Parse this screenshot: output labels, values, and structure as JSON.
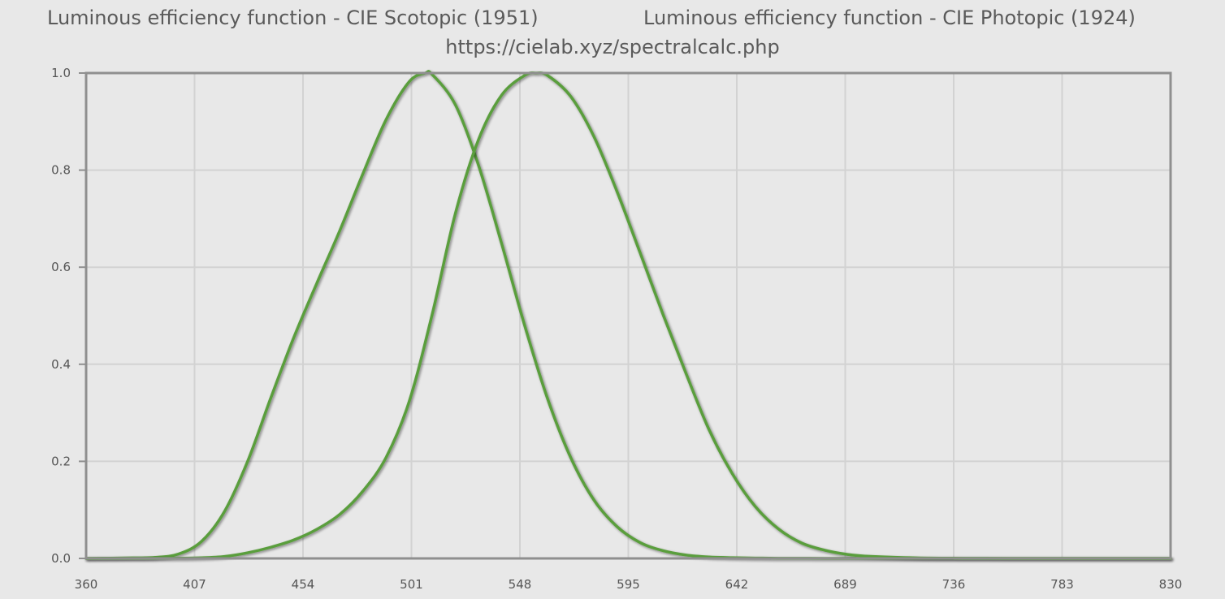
{
  "header": {
    "left_title": "Luminous efficiency function - CIE Scotopic (1951)",
    "right_title": "Luminous efficiency function - CIE Photopic (1924)",
    "subtitle": "https://cielab.xyz/spectralcalc.php"
  },
  "colors": {
    "background": "#e8e8e8",
    "plot_background": "#e8e8e8",
    "grid": "#d2d2d2",
    "frame": "#8f8f8f",
    "line": "#5a9e3c",
    "line_shadow": "#9c9c9c",
    "text": "#5a5a5a"
  },
  "chart_data": {
    "type": "line",
    "title": "",
    "xlabel": "",
    "ylabel": "",
    "xlim": [
      360,
      830
    ],
    "ylim": [
      0,
      1
    ],
    "grid": true,
    "legend": "none",
    "x_ticks": [
      360,
      407,
      454,
      501,
      548,
      595,
      642,
      689,
      736,
      783,
      830
    ],
    "y_ticks": [
      "0.0",
      "0.2",
      "0.4",
      "0.6",
      "0.8",
      "1.0"
    ],
    "series": [
      {
        "x": [
          360,
          380,
          390,
          400,
          410,
          420,
          430,
          440,
          450,
          460,
          470,
          480,
          490,
          500,
          507,
          510,
          520,
          530,
          540,
          550,
          560,
          570,
          580,
          590,
          600,
          610,
          620,
          630,
          640,
          650,
          660,
          680,
          700,
          730,
          780,
          830
        ],
        "y": [
          0.0,
          0.001,
          0.002,
          0.009,
          0.035,
          0.097,
          0.2,
          0.33,
          0.455,
          0.567,
          0.676,
          0.793,
          0.904,
          0.982,
          1.0,
          0.997,
          0.935,
          0.811,
          0.65,
          0.481,
          0.329,
          0.208,
          0.121,
          0.066,
          0.033,
          0.016,
          0.007,
          0.003,
          0.0015,
          0.0007,
          0.0003,
          0.0001,
          0.0,
          0.0,
          0.0,
          0.0
        ]
      },
      {
        "x": [
          360,
          380,
          390,
          400,
          410,
          420,
          430,
          440,
          450,
          460,
          470,
          480,
          490,
          500,
          510,
          520,
          530,
          540,
          550,
          555,
          560,
          570,
          580,
          590,
          600,
          610,
          620,
          630,
          640,
          650,
          660,
          670,
          680,
          690,
          700,
          720,
          740,
          760,
          780,
          830
        ],
        "y": [
          0.0,
          0.0,
          0.0001,
          0.0004,
          0.0012,
          0.004,
          0.0116,
          0.023,
          0.038,
          0.06,
          0.091,
          0.139,
          0.208,
          0.323,
          0.503,
          0.71,
          0.862,
          0.954,
          0.995,
          1.0,
          0.995,
          0.952,
          0.87,
          0.757,
          0.631,
          0.503,
          0.381,
          0.265,
          0.175,
          0.107,
          0.061,
          0.032,
          0.017,
          0.0082,
          0.0041,
          0.001,
          0.00025,
          6e-05,
          1.5e-05,
          0.0
        ]
      }
    ]
  }
}
